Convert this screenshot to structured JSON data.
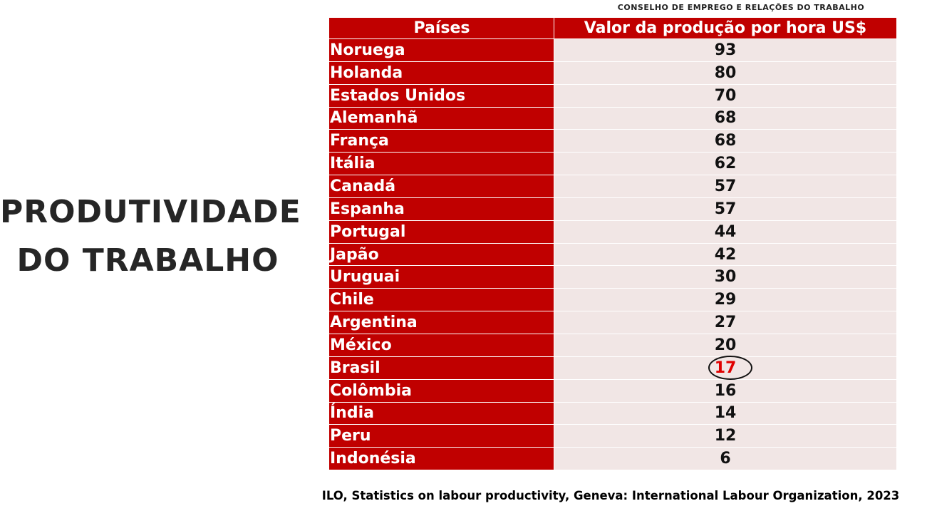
{
  "slide": {
    "title_lines": [
      "PRODUTIVIDADE",
      "DO TRABALHO"
    ],
    "header_note": "CONSELHO DE EMPREGO E RELAÇÕES DO TRABALHO",
    "table": {
      "columns": [
        "Países",
        "Valor da produção por hora US$"
      ],
      "rows": [
        [
          "Noruega",
          93
        ],
        [
          "Holanda",
          80
        ],
        [
          "Estados Unidos",
          70
        ],
        [
          "Alemanhã",
          68
        ],
        [
          "França",
          68
        ],
        [
          "Itália",
          62
        ],
        [
          "Canadá",
          57
        ],
        [
          "Espanha",
          57
        ],
        [
          "Portugal",
          44
        ],
        [
          "Japão",
          42
        ],
        [
          "Uruguai",
          30
        ],
        [
          "Chile",
          29
        ],
        [
          "Argentina",
          27
        ],
        [
          "México",
          20
        ],
        [
          "Brasil",
          17
        ],
        [
          "Colômbia",
          16
        ],
        [
          "Índia",
          14
        ],
        [
          "Peru",
          12
        ],
        [
          "Indonésia",
          6
        ]
      ]
    },
    "source": "ILO, Statistics on labour productivity, Geneva: International Labour Organization, 2023"
  }
}
